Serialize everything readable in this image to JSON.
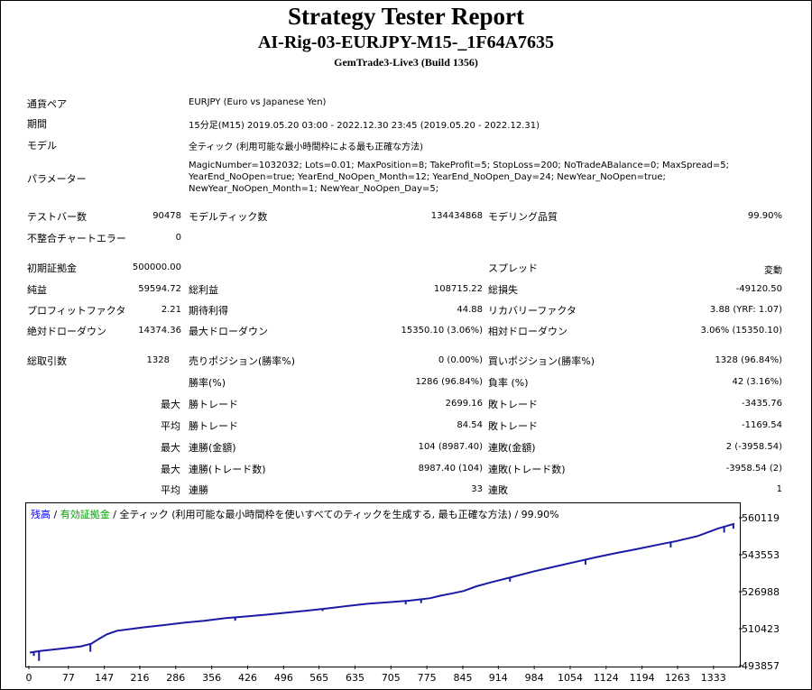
{
  "header": {
    "title": "Strategy Tester Report",
    "ea_name": "AI-Rig-03-EURJPY-M15-_1F64A7635",
    "server": "GemTrade3-Live3 (Build 1356)"
  },
  "info": {
    "pair_label": "通貨ペア",
    "pair_value": "EURJPY (Euro vs Japanese Yen)",
    "period_label": "期間",
    "period_value": "15分足(M15) 2019.05.20 03:00 - 2022.12.30 23:45 (2019.05.20 - 2022.12.31)",
    "model_label": "モデル",
    "model_value": "全ティック (利用可能な最小時間枠による最も正確な方法)",
    "params_label": "パラメーター",
    "params_lines": [
      "MagicNumber=1032032; Lots=0.01; MaxPosition=8; TakeProfit=5; StopLoss=200; NoTradeABalance=0; MaxSpread=5;",
      "YearEnd_NoOpen=true; YearEnd_NoOpen_Month=12; YearEnd_NoOpen_Day=24; NewYear_NoOpen=true;",
      "NewYear_NoOpen_Month=1; NewYear_NoOpen_Day=5;"
    ]
  },
  "stats": {
    "bars_label": "テストバー数",
    "bars_value": "90478",
    "ticks_label": "モデルティック数",
    "ticks_value": "134434868",
    "quality_label": "モデリング品質",
    "quality_value": "99.90%",
    "mismatch_label": "不整合チャートエラー",
    "mismatch_value": "0",
    "deposit_label": "初期証拠金",
    "deposit_value": "500000.00",
    "spread_label": "スプレッド",
    "spread_value": "変動",
    "net_label": "純益",
    "net_value": "59594.72",
    "gross_profit_label": "総利益",
    "gross_profit_value": "108715.22",
    "gross_loss_label": "総損失",
    "gross_loss_value": "-49120.50",
    "pf_label": "プロフィットファクタ",
    "pf_value": "2.21",
    "expected_label": "期待利得",
    "expected_value": "44.88",
    "recovery_label": "リカバリーファクタ",
    "recovery_value": "3.88 (YRF: 1.07)",
    "abs_dd_label": "絶対ドローダウン",
    "abs_dd_value": "14374.36",
    "max_dd_label": "最大ドローダウン",
    "max_dd_value": "15350.10 (3.06%)",
    "rel_dd_label": "相対ドローダウン",
    "rel_dd_value": "3.06% (15350.10)",
    "trades_label": "総取引数",
    "trades_value": "1328",
    "short_label": "売りポジション(勝率%)",
    "short_value": "0 (0.00%)",
    "long_label": "買いポジション(勝率%)",
    "long_value": "1328 (96.84%)",
    "win_label": "勝率(%)",
    "win_value": "1286 (96.84%)",
    "loss_label": "負率 (%)",
    "loss_value": "42 (3.16%)",
    "prefix_max": "最大",
    "prefix_avg": "平均",
    "max_win_label": "勝トレード",
    "max_win_value": "2699.16",
    "max_loss_label": "敗トレード",
    "max_loss_value": "-3435.76",
    "avg_win_label": "勝トレード",
    "avg_win_value": "84.54",
    "avg_loss_label": "敗トレード",
    "avg_loss_value": "-1169.54",
    "cons_wins_amt_label": "連勝(金額)",
    "cons_wins_amt_value": "104 (8987.40)",
    "cons_losses_amt_label": "連敗(金額)",
    "cons_losses_amt_value": "2 (-3958.54)",
    "cons_wins_cnt_label": "連勝(トレード数)",
    "cons_wins_cnt_value": "8987.40 (104)",
    "cons_losses_cnt_label": "連敗(トレード数)",
    "cons_losses_cnt_value": "-3958.54 (2)",
    "avg_cons_wins_label": "連勝",
    "avg_cons_wins_value": "33",
    "avg_cons_losses_label": "連敗",
    "avg_cons_losses_value": "1"
  },
  "legend": {
    "balance": "残高",
    "sep1": " / ",
    "equity": "有効証拠金",
    "sep2": " / ",
    "model": "全ティック (利用可能な最小時間枠を使いすべてのティックを生成する, 最も正確な方法) / 99.90%",
    "balance_color": "#0000ff",
    "equity_color": "#00a000"
  },
  "chart_data": {
    "type": "line",
    "line_color": "#1a1aa6",
    "ylim": [
      493857,
      560119
    ],
    "y_ticks": [
      "560119",
      "543553",
      "526988",
      "510423",
      "493857"
    ],
    "x_ticks": [
      "0",
      "77",
      "147",
      "216",
      "286",
      "356",
      "426",
      "496",
      "565",
      "635",
      "705",
      "775",
      "845",
      "914",
      "984",
      "1054",
      "1124",
      "1194",
      "1263",
      "1333"
    ],
    "series": [
      {
        "x": [
          0,
          20,
          60,
          100,
          120,
          135,
          150,
          170,
          200,
          220,
          260,
          300,
          340,
          380,
          420,
          460,
          500,
          540,
          580,
          620,
          660,
          700,
          740,
          780,
          800,
          820,
          845,
          870,
          900,
          940,
          980,
          1020,
          1060,
          1100,
          1140,
          1180,
          1220,
          1260,
          1300,
          1340,
          1372
        ],
        "y": [
          500100,
          500800,
          501800,
          502900,
          504100,
          506300,
          508300,
          509900,
          510800,
          511400,
          512400,
          513500,
          514400,
          515500,
          516300,
          517100,
          518000,
          518900,
          519900,
          521000,
          522000,
          522700,
          523400,
          524500,
          525600,
          526500,
          527700,
          529800,
          531700,
          534000,
          536400,
          538500,
          540600,
          542700,
          544600,
          546400,
          548300,
          550100,
          552300,
          555700,
          557800
        ]
      }
    ],
    "dips": [
      {
        "x": 8,
        "y": 498600
      },
      {
        "x": 18,
        "y": 496400
      },
      {
        "x": 118,
        "y": 500500
      },
      {
        "x": 400,
        "y": 514400
      },
      {
        "x": 570,
        "y": 518700
      },
      {
        "x": 732,
        "y": 521700
      },
      {
        "x": 762,
        "y": 522300
      },
      {
        "x": 935,
        "y": 531900
      },
      {
        "x": 1082,
        "y": 539500
      },
      {
        "x": 1248,
        "y": 547200
      },
      {
        "x": 1352,
        "y": 553900
      },
      {
        "x": 1370,
        "y": 555600
      }
    ]
  }
}
